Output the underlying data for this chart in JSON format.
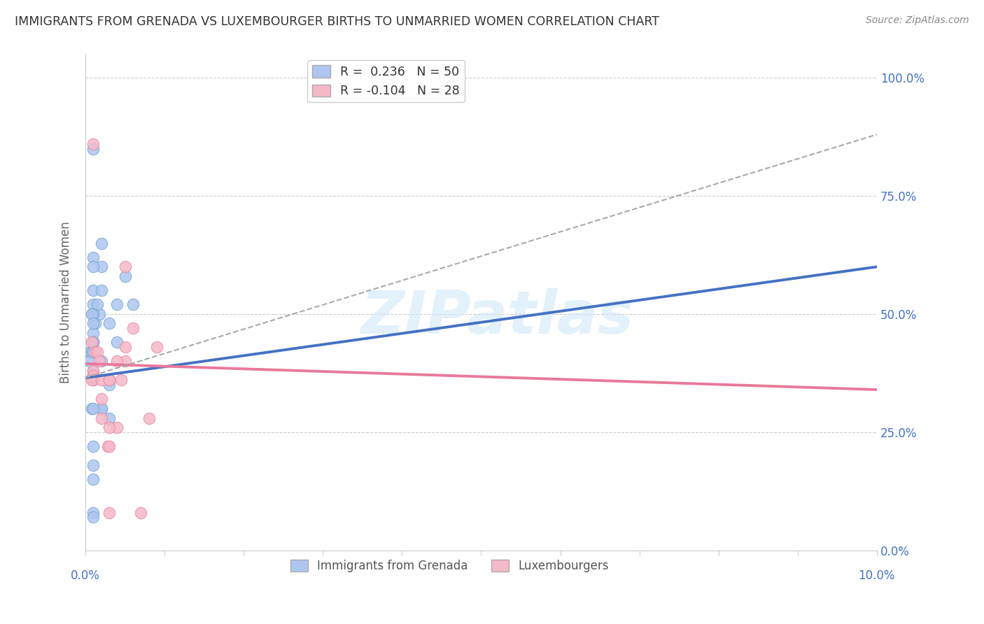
{
  "title": "IMMIGRANTS FROM GRENADA VS LUXEMBOURGER BIRTHS TO UNMARRIED WOMEN CORRELATION CHART",
  "source": "Source: ZipAtlas.com",
  "ylabel": "Births to Unmarried Women",
  "right_ytick_vals": [
    0.0,
    0.25,
    0.5,
    0.75,
    1.0
  ],
  "right_yticklabels": [
    "0.0%",
    "25.0%",
    "50.0%",
    "75.0%",
    "100.0%"
  ],
  "legend1_line1": "R =  0.236   N = 50",
  "legend1_line2": "R = -0.104   N = 28",
  "legend2_label1": "Immigrants from Grenada",
  "legend2_label2": "Luxembourgers",
  "blue_color": "#aec6ef",
  "blue_edge": "#7baad4",
  "pink_color": "#f5b8c8",
  "pink_edge": "#e88fa5",
  "blue_line_color": "#4472C4",
  "pink_line_color": "#e8799a",
  "gray_dash_color": "#aaaaaa",
  "axis_label_color": "#4472C4",
  "title_color": "#333333",
  "source_color": "#888888",
  "grid_color": "#cccccc",
  "watermark_text": "ZIPatlas",
  "watermark_color": "#d0e8f8",
  "background_color": "#ffffff",
  "xmin": 0.0,
  "xmax": 0.1,
  "ymin": 0.0,
  "ymax": 1.05,
  "blue_scatter_x": [
    0.001,
    0.001,
    0.002,
    0.001,
    0.001,
    0.0005,
    0.001,
    0.001,
    0.0012,
    0.001,
    0.001,
    0.001,
    0.001,
    0.002,
    0.002,
    0.001,
    0.001,
    0.0018,
    0.0015,
    0.002,
    0.001,
    0.001,
    0.0008,
    0.001,
    0.0005,
    0.001,
    0.0008,
    0.002,
    0.003,
    0.002,
    0.003,
    0.003,
    0.004,
    0.004,
    0.005,
    0.006,
    0.003,
    0.001,
    0.001,
    0.001,
    0.001,
    0.001,
    0.0008,
    0.001,
    0.001,
    0.001,
    0.001,
    0.001,
    0.001,
    0.001
  ],
  "blue_scatter_y": [
    0.44,
    0.62,
    0.6,
    0.46,
    0.5,
    0.42,
    0.5,
    0.5,
    0.48,
    0.44,
    0.36,
    0.38,
    0.42,
    0.4,
    0.65,
    0.55,
    0.52,
    0.5,
    0.52,
    0.55,
    0.5,
    0.44,
    0.42,
    0.44,
    0.4,
    0.42,
    0.3,
    0.3,
    0.28,
    0.3,
    0.35,
    0.36,
    0.44,
    0.52,
    0.58,
    0.52,
    0.48,
    0.85,
    0.37,
    0.37,
    0.37,
    0.6,
    0.5,
    0.48,
    0.3,
    0.22,
    0.18,
    0.15,
    0.08,
    0.07
  ],
  "pink_scatter_x": [
    0.0008,
    0.0012,
    0.0015,
    0.001,
    0.001,
    0.001,
    0.0008,
    0.0018,
    0.002,
    0.002,
    0.0028,
    0.002,
    0.001,
    0.005,
    0.0045,
    0.005,
    0.004,
    0.003,
    0.003,
    0.009,
    0.008,
    0.006,
    0.007,
    0.003,
    0.004,
    0.003,
    0.003,
    0.005
  ],
  "pink_scatter_y": [
    0.44,
    0.42,
    0.42,
    0.36,
    0.38,
    0.37,
    0.36,
    0.4,
    0.32,
    0.28,
    0.22,
    0.36,
    0.86,
    0.6,
    0.36,
    0.4,
    0.4,
    0.36,
    0.36,
    0.43,
    0.28,
    0.47,
    0.08,
    0.08,
    0.26,
    0.26,
    0.22,
    0.43
  ],
  "blue_trendline_x": [
    0.0,
    0.1
  ],
  "blue_trendline_y": [
    0.365,
    0.6
  ],
  "pink_trendline_x": [
    0.0,
    0.1
  ],
  "pink_trendline_y": [
    0.395,
    0.34
  ],
  "gray_trendline_x": [
    0.0,
    0.1
  ],
  "gray_trendline_y": [
    0.365,
    0.88
  ]
}
